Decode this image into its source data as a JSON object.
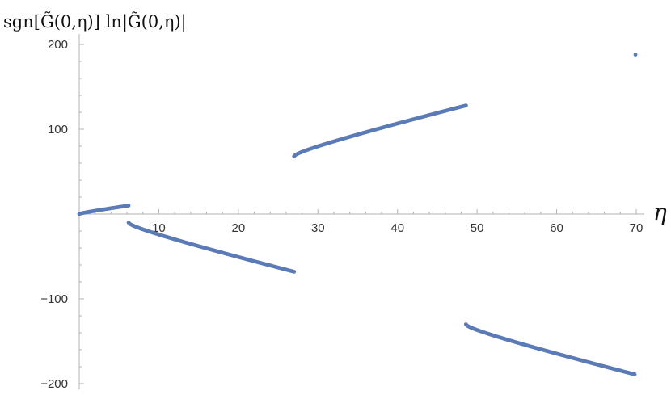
{
  "chart_data": {
    "type": "scatter",
    "ylabel": "sgn[G̃(0,η)] ln|G̃(0,η)|",
    "xlabel": "η",
    "xlim": [
      0,
      71
    ],
    "ylim": [
      -205,
      205
    ],
    "x_ticks": [
      10,
      20,
      30,
      40,
      50,
      60,
      70
    ],
    "y_ticks": [
      -200,
      -100,
      100,
      200
    ],
    "y_tick_labels": [
      "−200",
      "−100",
      "100",
      "200"
    ],
    "point_color": "#5b7bb7",
    "grid": false,
    "segments": [
      {
        "x_start": 0.0,
        "x_end": 6.2,
        "y_start": 0.0,
        "y_end": 10.0,
        "step": 0.15
      },
      {
        "x_start": 6.2,
        "x_end": 27.0,
        "y_start": -10.0,
        "y_end": -68.0,
        "step": 0.15
      },
      {
        "x_start": 27.0,
        "x_end": 48.6,
        "y_start": 68.0,
        "y_end": 128.0,
        "step": 0.15
      },
      {
        "x_start": 48.6,
        "x_end": 69.8,
        "y_start": -130.0,
        "y_end": -189.0,
        "step": 0.15
      }
    ],
    "isolated_points": [
      {
        "x": 69.9,
        "y": 188.0
      }
    ]
  }
}
